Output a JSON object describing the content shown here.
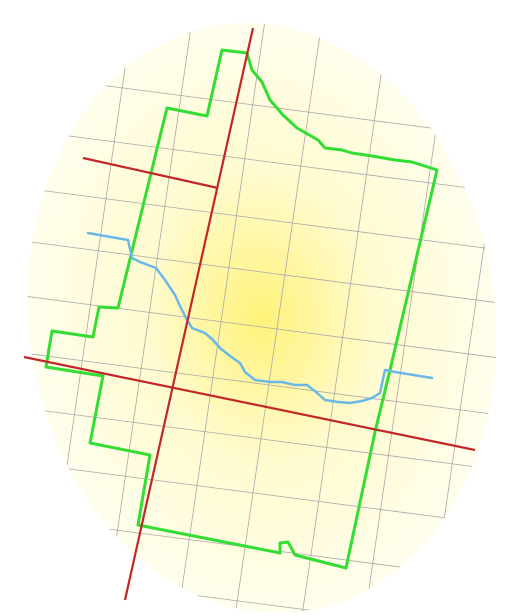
{
  "map": {
    "projection": "oblique",
    "background_gradient": {
      "center_color": "#fff27a",
      "mid_color": "#fffbd0",
      "edge_color": "#fffef2"
    },
    "colors": {
      "graticule": "#a8a8a8",
      "boundary": "#33dd33",
      "river": "#6ab8e8",
      "red_lines": "#c02828"
    },
    "layers": [
      {
        "name": "graticule",
        "icon": "grid-lines"
      },
      {
        "name": "boundary",
        "icon": "polygon-outline"
      },
      {
        "name": "river",
        "icon": "water-line"
      },
      {
        "name": "reference-lines",
        "icon": "red-line"
      }
    ]
  }
}
